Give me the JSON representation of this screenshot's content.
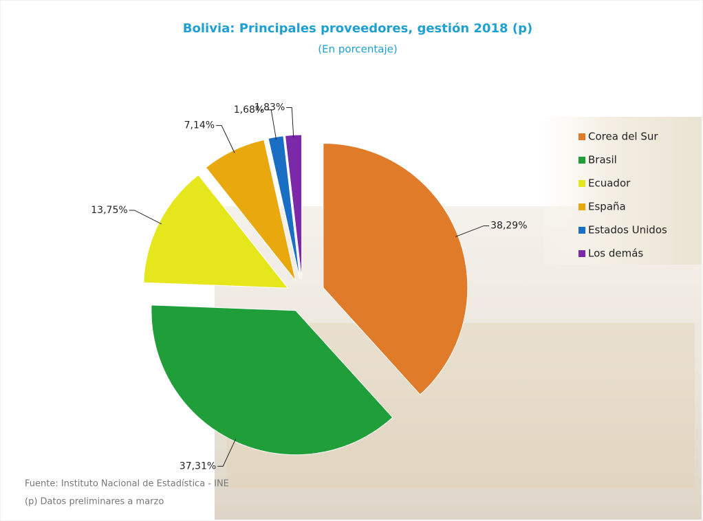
{
  "chart_data": {
    "type": "pie",
    "title": "Bolivia: Principales proveedores, gestión 2018 (p)",
    "subtitle": "(En porcentaje)",
    "categories": [
      "Corea del Sur",
      "Brasil",
      "Ecuador",
      "España",
      "Estados Unidos",
      "Los demás"
    ],
    "values": [
      38.29,
      37.31,
      13.75,
      7.14,
      1.68,
      1.83
    ],
    "value_labels": [
      "38,29%",
      "37,31%",
      "13,75%",
      "7,14%",
      "1,68%",
      "1,83%"
    ],
    "colors": [
      "#e07b2a",
      "#1f9e3a",
      "#e6e61c",
      "#e8a80e",
      "#1a6ec4",
      "#7a2aa8"
    ],
    "legend": "right",
    "source": "Fuente: Instituto Nacional de Estadística - INE",
    "note": "(p) Datos preliminares a marzo"
  }
}
